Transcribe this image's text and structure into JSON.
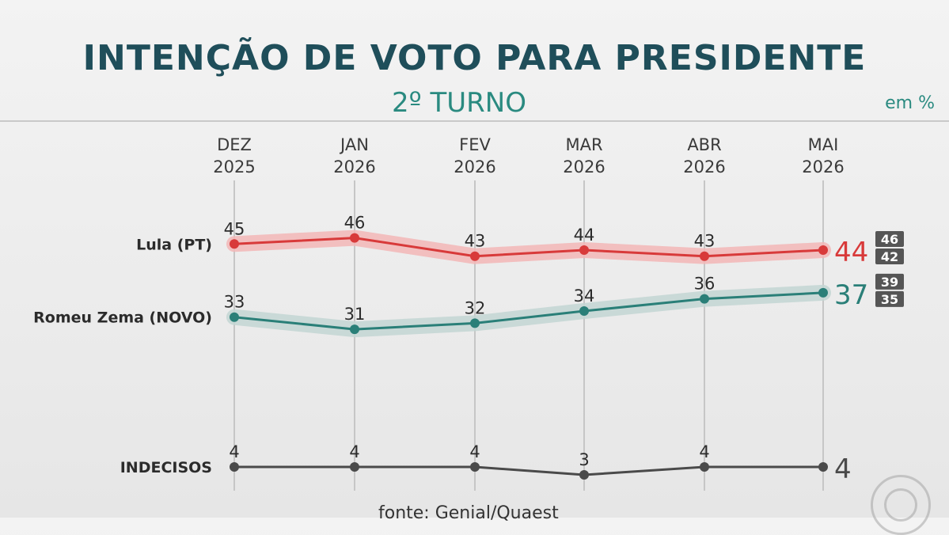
{
  "header": {
    "title": "INTENÇÃO DE VOTO PARA PRESIDENTE",
    "subtitle": "2º TURNO",
    "unit": "em %"
  },
  "source": "fonte: Genial/Quaest",
  "chart_data": {
    "type": "line",
    "categories": [
      [
        "DEZ",
        "2025"
      ],
      [
        "JAN",
        "2026"
      ],
      [
        "FEV",
        "2026"
      ],
      [
        "MAR",
        "2026"
      ],
      [
        "ABR",
        "2026"
      ],
      [
        "MAI",
        "2026"
      ]
    ],
    "series": [
      {
        "name": "Lula (PT)",
        "values": [
          45,
          46,
          43,
          44,
          43,
          44
        ],
        "color": "#d83a3a",
        "band_color": "#f2b6b6",
        "range": [
          "46",
          "42"
        ]
      },
      {
        "name": "Romeu Zema (NOVO)",
        "values": [
          33,
          31,
          32,
          34,
          36,
          37
        ],
        "color": "#2a7f78",
        "band_color": "#c3d6d3",
        "range": [
          "39",
          "35"
        ]
      },
      {
        "name": "INDECISOS",
        "values": [
          4,
          4,
          4,
          3,
          4,
          4
        ],
        "color": "#4a4a4a"
      }
    ],
    "grid": "vertical",
    "legend": "left labels"
  }
}
